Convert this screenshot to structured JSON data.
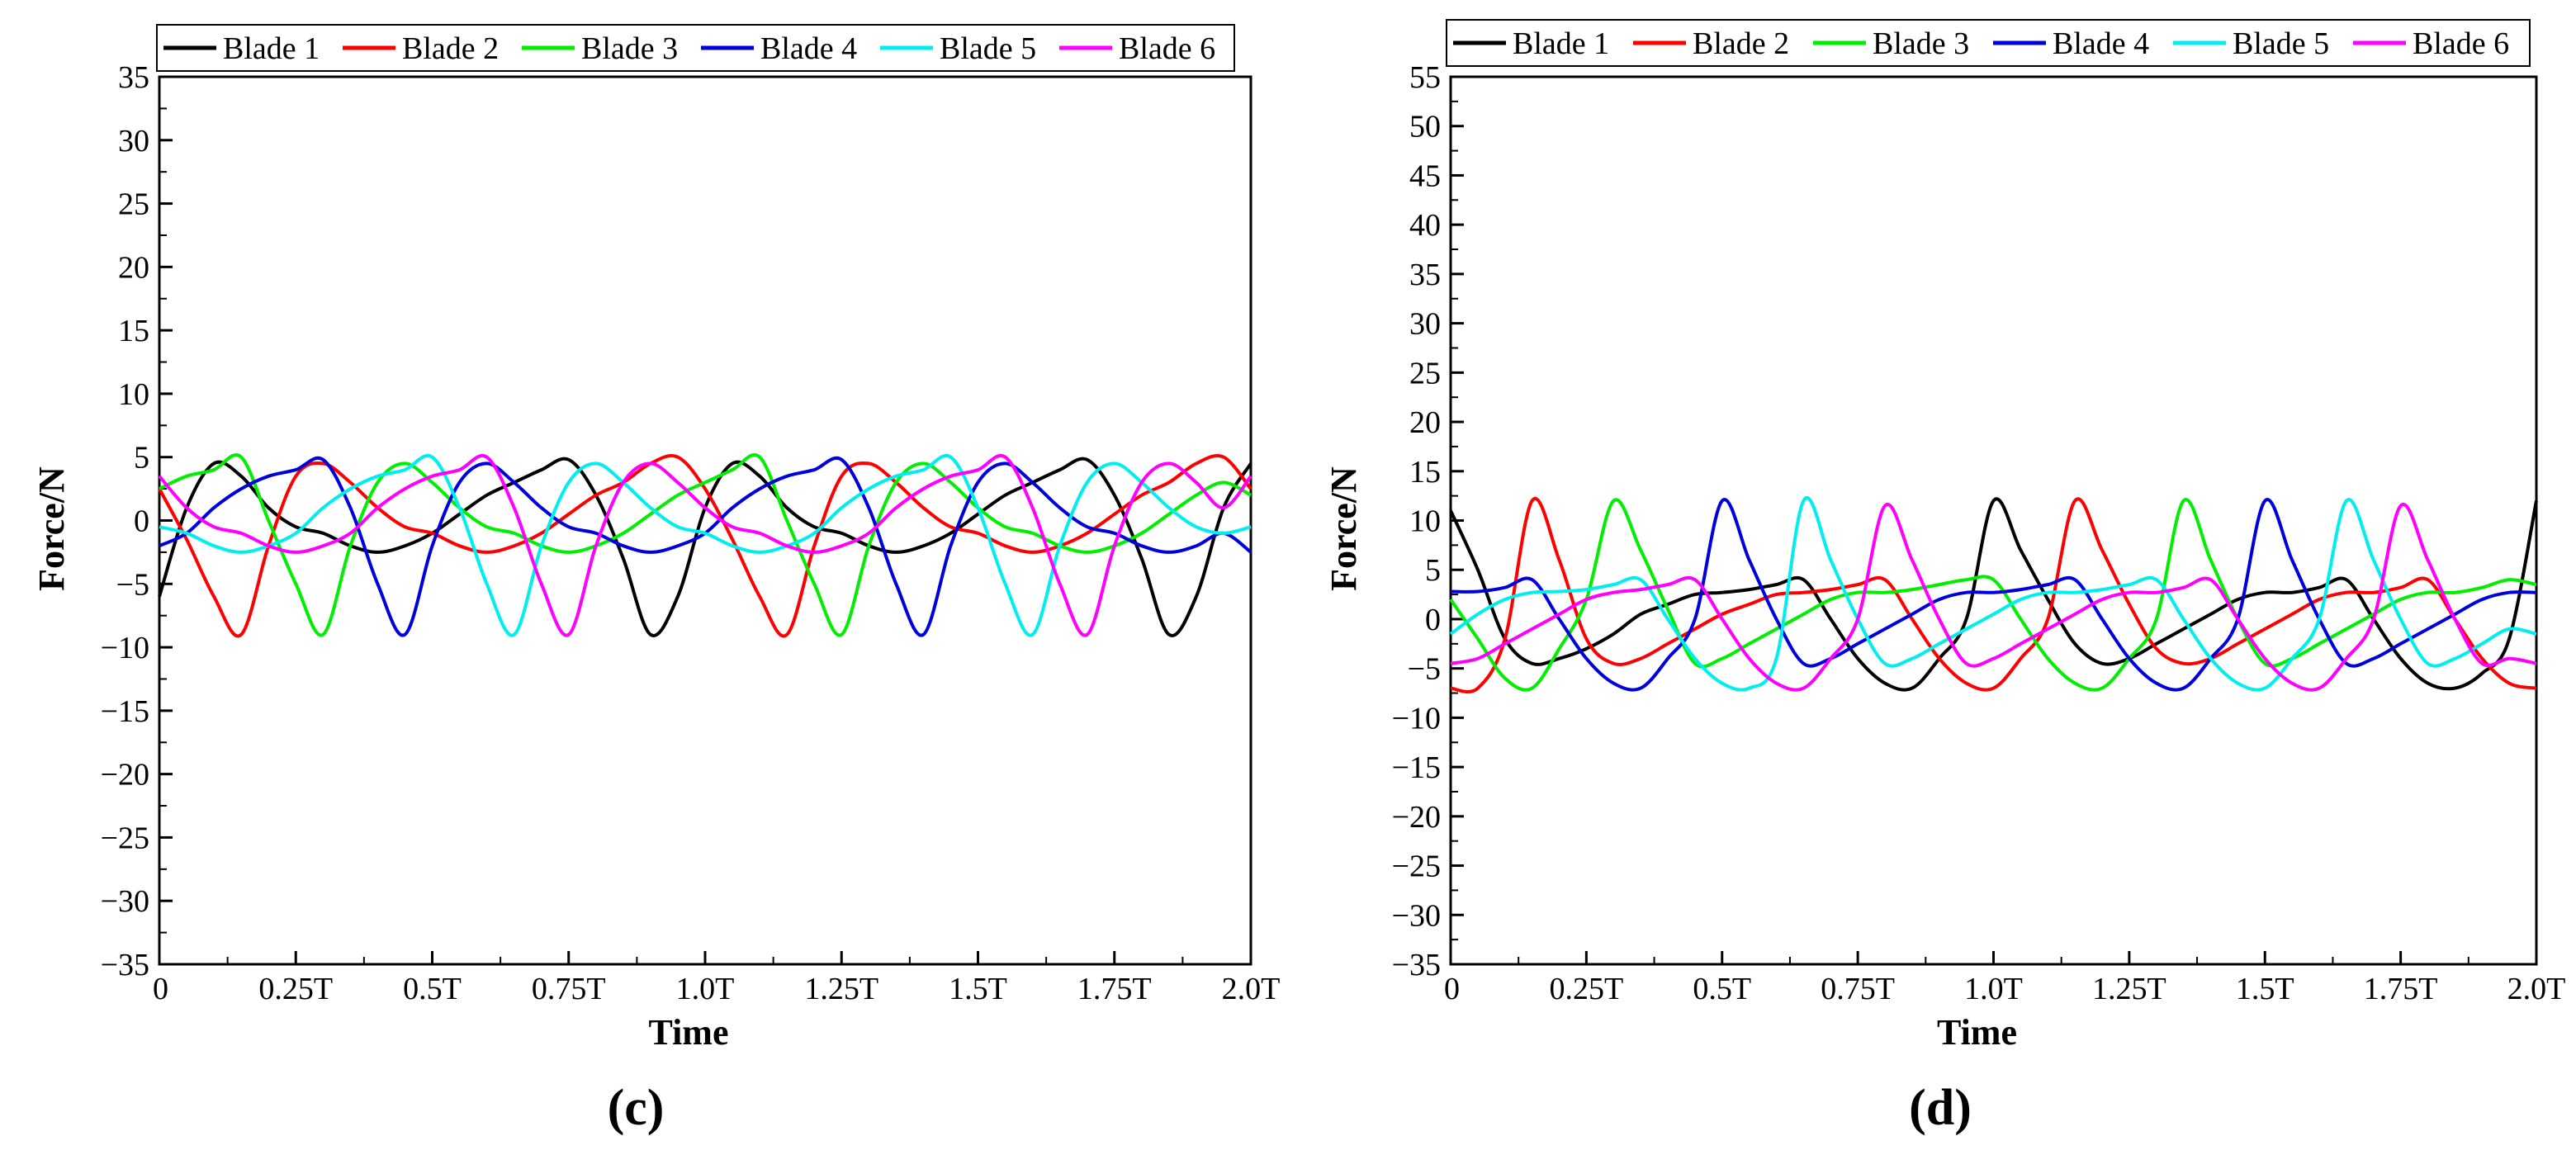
{
  "chart_data": [
    {
      "type": "line",
      "panel_label": "(c)",
      "xlabel": "Time",
      "ylabel": "Force/N",
      "xlim": [
        0,
        2.0
      ],
      "ylim": [
        -35,
        35
      ],
      "yticks": [
        35,
        30,
        25,
        20,
        15,
        10,
        5,
        0,
        -5,
        -10,
        -15,
        -20,
        -25,
        -30,
        -35
      ],
      "xtick_labels": [
        "0",
        "0.25T",
        "0.5T",
        "0.75T",
        "1.0T",
        "1.25T",
        "1.5T",
        "1.75T",
        "2.0T"
      ],
      "legend_position": "top",
      "x": [
        0,
        0.05,
        0.1,
        0.15,
        0.2,
        0.25,
        0.3,
        0.35,
        0.4,
        0.45,
        0.5,
        0.55,
        0.6,
        0.65,
        0.7,
        0.75,
        0.8,
        0.85,
        0.9,
        0.95,
        1.0,
        1.05,
        1.1,
        1.15,
        1.2,
        1.25,
        1.3,
        1.35,
        1.4,
        1.45,
        1.5,
        1.55,
        1.6,
        1.65,
        1.7,
        1.75,
        1.8,
        1.85,
        1.9,
        1.95,
        2.0
      ],
      "series": [
        {
          "name": "Blade 1",
          "color": "#000000",
          "values": [
            -6,
            1,
            4.5,
            3.5,
            1,
            -0.5,
            -1,
            -2,
            -2.5,
            -2,
            -1,
            0.5,
            2,
            3,
            4,
            4.8,
            2,
            -3,
            -9,
            -6,
            1,
            4.5,
            3.5,
            1,
            -0.5,
            -1,
            -2,
            -2.5,
            -2,
            -1,
            0.5,
            2,
            3,
            4,
            4.8,
            2,
            -3,
            -9,
            -6,
            1,
            4.5
          ]
        },
        {
          "name": "Blade 2",
          "color": "#ff0000",
          "values": [
            2.5,
            -1.5,
            -6,
            -9,
            -2,
            3.5,
            4.5,
            3,
            1,
            -0.5,
            -1,
            -2,
            -2.5,
            -2,
            -1,
            0.5,
            2,
            3,
            4.5,
            5,
            2.5,
            -1.5,
            -6,
            -9,
            -2,
            3.5,
            4.5,
            3,
            1,
            -0.5,
            -1,
            -2,
            -2.5,
            -2,
            -1,
            0.5,
            2,
            3,
            4.5,
            5,
            2.5
          ]
        },
        {
          "name": "Blade 3",
          "color": "#00ee00",
          "values": [
            2.5,
            3.5,
            4,
            5,
            0,
            -5,
            -9,
            -2,
            3,
            4.5,
            3,
            1,
            -0.5,
            -1,
            -2,
            -2.5,
            -2,
            -1,
            0.5,
            2,
            3,
            4,
            5,
            0,
            -5,
            -9,
            -2,
            3,
            4.5,
            3,
            1,
            -0.5,
            -1,
            -2,
            -2.5,
            -2,
            -1,
            0.5,
            2,
            3,
            2
          ]
        },
        {
          "name": "Blade 4",
          "color": "#0000dd",
          "values": [
            -2,
            -1,
            1,
            2.5,
            3.5,
            4,
            4.8,
            1,
            -5,
            -9,
            -2,
            3,
            4.5,
            3,
            1,
            -0.5,
            -1,
            -2,
            -2.5,
            -2,
            -1,
            1,
            2.5,
            3.5,
            4,
            4.8,
            1,
            -5,
            -9,
            -2,
            3,
            4.5,
            3,
            1,
            -0.5,
            -1,
            -2,
            -2.5,
            -2,
            -1,
            -2.5
          ]
        },
        {
          "name": "Blade 5",
          "color": "#00eeee",
          "values": [
            -0.5,
            -1,
            -2,
            -2.5,
            -2,
            -1,
            1,
            2.5,
            3.5,
            4,
            5,
            1,
            -5,
            -9,
            -2,
            3,
            4.5,
            3,
            1,
            -0.5,
            -1,
            -2,
            -2.5,
            -2,
            -1,
            1,
            2.5,
            3.5,
            4,
            5,
            1,
            -5,
            -9,
            -2,
            3,
            4.5,
            3,
            1,
            -0.5,
            -1,
            -0.5
          ]
        },
        {
          "name": "Blade 6",
          "color": "#ff00ff",
          "values": [
            3.5,
            1,
            -0.5,
            -1,
            -2,
            -2.5,
            -2,
            -1,
            1,
            2.5,
            3.5,
            4,
            5,
            1,
            -5,
            -9,
            -2,
            3,
            4.5,
            3,
            1,
            -0.5,
            -1,
            -2,
            -2.5,
            -2,
            -1,
            1,
            2.5,
            3.5,
            4,
            5,
            1,
            -5,
            -9,
            -2,
            3,
            4.5,
            3,
            1,
            3.5
          ]
        }
      ]
    },
    {
      "type": "line",
      "panel_label": "(d)",
      "xlabel": "Time",
      "ylabel": "Force/N",
      "xlim": [
        0,
        2.0
      ],
      "ylim": [
        -35,
        55
      ],
      "yticks": [
        55,
        50,
        45,
        40,
        35,
        30,
        25,
        20,
        15,
        10,
        5,
        0,
        -5,
        -10,
        -15,
        -20,
        -25,
        -30,
        -35
      ],
      "xtick_labels": [
        "0",
        "0.25T",
        "0.5T",
        "0.75T",
        "1.0T",
        "1.25T",
        "1.5T",
        "1.75T",
        "2.0T"
      ],
      "legend_position": "top",
      "x": [
        0,
        0.05,
        0.1,
        0.15,
        0.2,
        0.25,
        0.3,
        0.35,
        0.4,
        0.45,
        0.5,
        0.55,
        0.6,
        0.65,
        0.7,
        0.75,
        0.8,
        0.85,
        0.9,
        0.95,
        1.0,
        1.05,
        1.1,
        1.15,
        1.2,
        1.25,
        1.3,
        1.35,
        1.4,
        1.45,
        1.5,
        1.55,
        1.6,
        1.65,
        1.7,
        1.75,
        1.8,
        1.85,
        1.9,
        1.95,
        2.0
      ],
      "series": [
        {
          "name": "Blade 1",
          "color": "#000000",
          "values": [
            11,
            5,
            -2,
            -4.5,
            -4,
            -3,
            -1.5,
            0.5,
            1.5,
            2.5,
            2.7,
            3,
            3.5,
            4,
            0,
            -4,
            -6.5,
            -7,
            -4,
            0,
            12,
            7,
            2,
            -2.5,
            -4.5,
            -4,
            -2.5,
            -1,
            0.5,
            2,
            2.7,
            2.7,
            3.2,
            4,
            0,
            -4,
            -6.5,
            -7,
            -5.5,
            -2,
            12
          ]
        },
        {
          "name": "Blade 2",
          "color": "#ff0000",
          "values": [
            -7,
            -7,
            -2,
            12,
            6,
            -2,
            -4.5,
            -4,
            -2.5,
            -1,
            0.5,
            1.5,
            2.5,
            2.7,
            3,
            3.5,
            4,
            0,
            -4,
            -6.5,
            -7,
            -4,
            0,
            12,
            7,
            1.5,
            -3,
            -4.5,
            -4,
            -2.5,
            -1,
            0.5,
            2,
            2.7,
            2.7,
            3.2,
            4,
            0,
            -4,
            -6.5,
            -7
          ]
        },
        {
          "name": "Blade 3",
          "color": "#00ee00",
          "values": [
            2,
            -2,
            -6,
            -7,
            -3,
            2,
            12,
            7,
            1,
            -4.5,
            -4,
            -2.5,
            -1,
            0.5,
            2,
            2.7,
            2.7,
            3,
            3.5,
            4,
            4,
            0,
            -4,
            -6.5,
            -7,
            -4,
            0,
            12,
            6,
            0,
            -4.5,
            -4,
            -2.5,
            -1,
            0.5,
            2,
            2.7,
            2.7,
            3.2,
            4,
            3.5
          ]
        },
        {
          "name": "Blade 4",
          "color": "#0000dd",
          "values": [
            2.8,
            2.8,
            3.2,
            4,
            0,
            -4,
            -6.5,
            -7,
            -4,
            0,
            12,
            6,
            0,
            -4.5,
            -4,
            -2.5,
            -1,
            0.5,
            2,
            2.7,
            2.7,
            3,
            3.5,
            4,
            0,
            -4,
            -6.5,
            -7,
            -4,
            0,
            12,
            6,
            0,
            -4.5,
            -4,
            -2.5,
            -1,
            0.5,
            2,
            2.7,
            2.7
          ]
        },
        {
          "name": "Blade 5",
          "color": "#00eeee",
          "values": [
            -1.5,
            0.5,
            2,
            2.7,
            2.8,
            3,
            3.5,
            4,
            0,
            -4,
            -6.5,
            -7,
            -4,
            12,
            6,
            0,
            -4.5,
            -4,
            -2.5,
            -1,
            0.5,
            2,
            2.7,
            2.7,
            3,
            3.5,
            4,
            0,
            -4,
            -6.5,
            -7,
            -4,
            0,
            12,
            6,
            0,
            -4.5,
            -4,
            -2.5,
            -1,
            -1.5
          ]
        },
        {
          "name": "Blade 6",
          "color": "#ff00ff",
          "values": [
            -4.5,
            -4,
            -2.5,
            -1,
            0.5,
            2,
            2.7,
            3,
            3.5,
            4,
            0,
            -4,
            -6.5,
            -7,
            -4,
            0,
            11.5,
            6,
            0,
            -4.5,
            -4,
            -2.5,
            -1,
            0.5,
            2,
            2.7,
            2.7,
            3.2,
            4,
            0,
            -4,
            -6.5,
            -7,
            -4,
            0,
            11.5,
            6,
            0,
            -4.5,
            -4,
            -4.5
          ]
        }
      ]
    }
  ]
}
